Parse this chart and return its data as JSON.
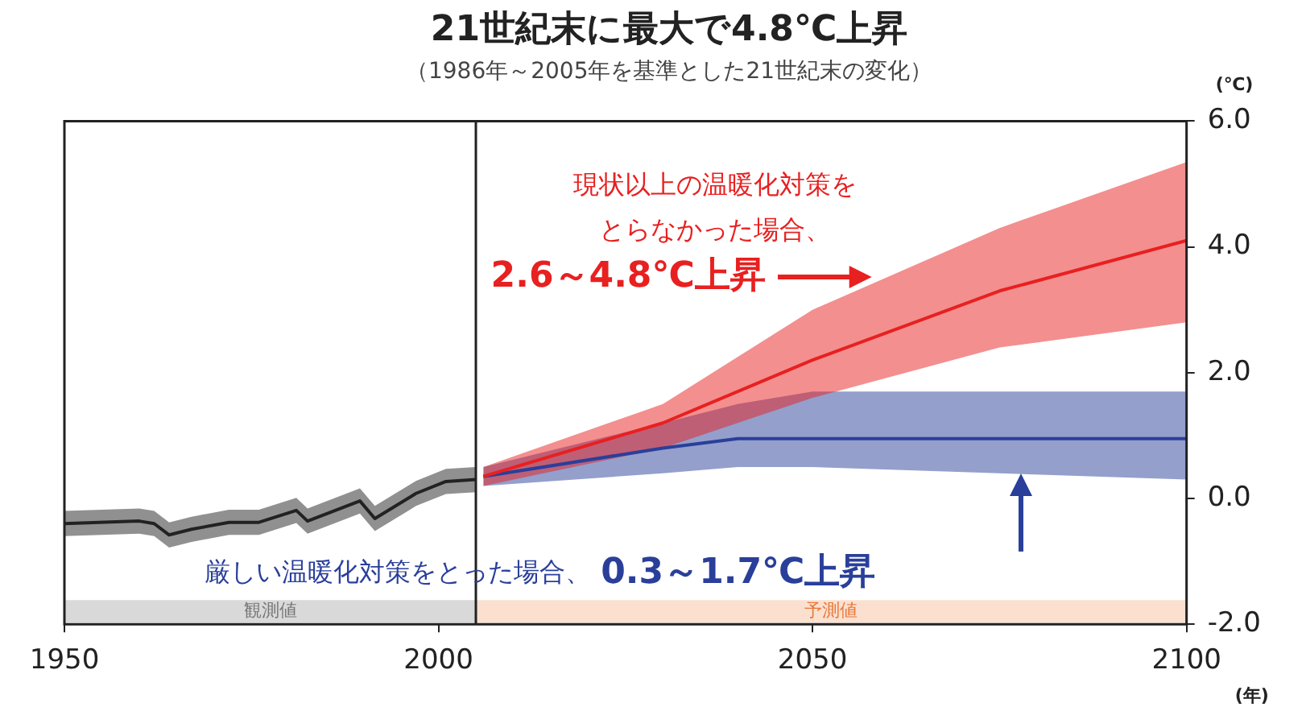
{
  "chart_data": {
    "type": "line",
    "title": "21世紀末に最大で4.8℃上昇",
    "subtitle": "（1986年～2005年を基準とした21世紀末の変化）",
    "xlabel": "(年)",
    "ylabel": "(℃)",
    "xlim": [
      1950,
      2100
    ],
    "xticks": [
      1950,
      2000,
      2050,
      2100
    ],
    "ylim": [
      -2,
      6
    ],
    "yticks": [
      {
        "value": -2,
        "label": "-2.0"
      },
      {
        "value": 0,
        "label": "0.0"
      },
      {
        "value": 2,
        "label": "2.0"
      },
      {
        "value": 4,
        "label": "4.0"
      },
      {
        "value": 6,
        "label": "6.0"
      }
    ],
    "grid": false,
    "legend": false,
    "marker": "none",
    "line_style": "solid",
    "series": [
      {
        "color": "#222222",
        "x": [
          1950,
          1960,
          1962,
          1964,
          1967,
          1972,
          1976,
          1981,
          1982.5,
          1989.5,
          1991.5,
          1997,
          2001,
          2005
        ],
        "values": [
          -0.4,
          -0.36,
          -0.4,
          -0.58,
          -0.49,
          -0.38,
          -0.38,
          -0.19,
          -0.36,
          -0.04,
          -0.32,
          0.08,
          0.27,
          0.3
        ],
        "lower": [
          -0.6,
          -0.56,
          -0.6,
          -0.78,
          -0.69,
          -0.58,
          -0.58,
          -0.39,
          -0.56,
          -0.24,
          -0.52,
          -0.12,
          0.07,
          0.1
        ],
        "upper": [
          -0.2,
          -0.16,
          -0.2,
          -0.38,
          -0.29,
          -0.18,
          -0.18,
          0.01,
          -0.16,
          0.16,
          -0.12,
          0.28,
          0.47,
          0.5
        ]
      },
      {
        "color": "#e82020",
        "x": [
          2006,
          2030,
          2050,
          2075,
          2100
        ],
        "values": [
          0.35,
          1.2,
          2.2,
          3.3,
          4.1
        ],
        "lower": [
          0.2,
          0.8,
          1.6,
          2.4,
          2.8
        ],
        "upper": [
          0.5,
          1.5,
          3.0,
          4.3,
          5.35
        ]
      },
      {
        "color": "#2a3f9a",
        "x": [
          2006,
          2030,
          2040,
          2050,
          2075,
          2100
        ],
        "values": [
          0.35,
          0.8,
          0.95,
          0.95,
          0.95,
          0.95
        ],
        "lower": [
          0.2,
          0.4,
          0.5,
          0.5,
          0.4,
          0.3
        ],
        "upper": [
          0.5,
          1.2,
          1.5,
          1.7,
          1.7,
          1.7
        ]
      }
    ],
    "ref_lines": [
      {
        "axis": "x",
        "value": 2005,
        "color": "#222222"
      }
    ],
    "bands": [
      {
        "axis": "x",
        "from": 1950,
        "to": 2005,
        "label": "観測値",
        "color": "#d9d9d9"
      },
      {
        "axis": "x",
        "from": 2005,
        "to": 2100,
        "label": "予測値",
        "color": "#fbe0d0"
      }
    ],
    "annotations": [
      "現状以上の温暖化対策を",
      "とらなかった場合、",
      "2.6～4.8℃上昇",
      "厳しい温暖化対策をとった場合、",
      "0.3～1.7℃上昇"
    ]
  }
}
